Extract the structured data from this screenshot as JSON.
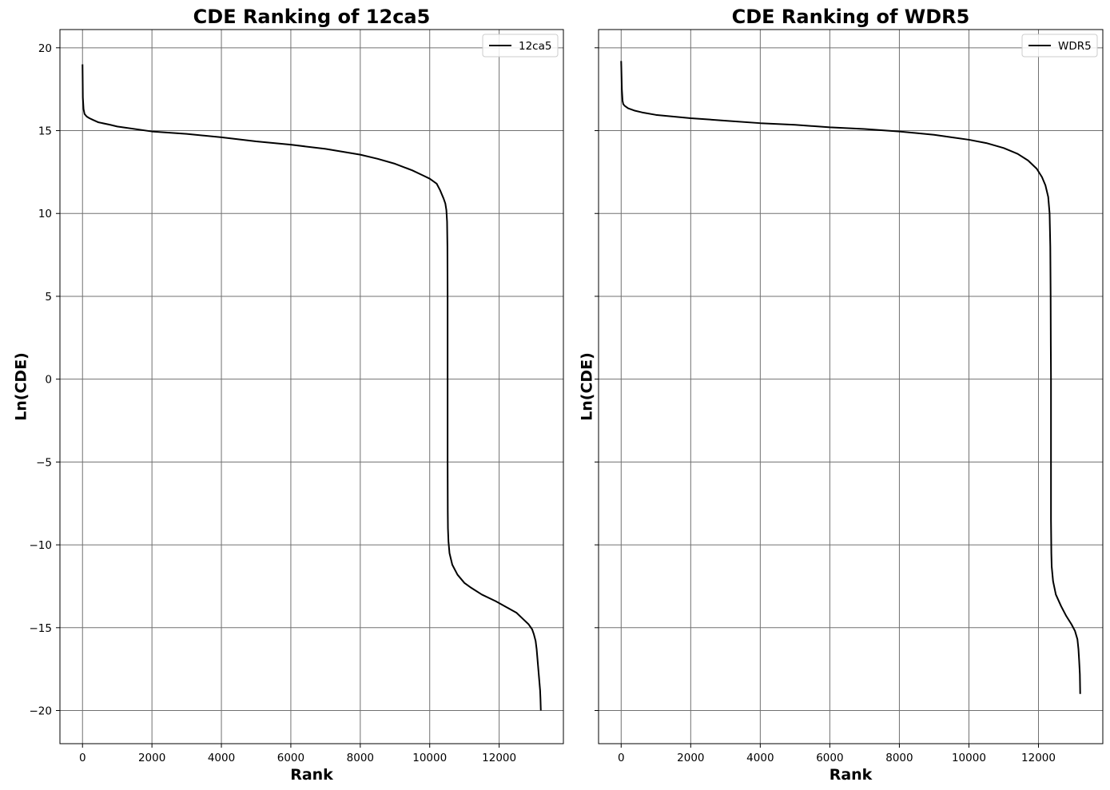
{
  "chart_data": [
    {
      "type": "line",
      "title": "CDE Ranking of 12ca5",
      "xlabel": "Rank",
      "ylabel": "Ln(CDE)",
      "xlim": [
        -650,
        13850
      ],
      "ylim": [
        -22,
        21.1
      ],
      "xticks": [
        0,
        2000,
        4000,
        6000,
        8000,
        10000,
        12000
      ],
      "yticks": [
        20,
        15,
        10,
        5,
        0,
        -5,
        -10,
        -15,
        -20
      ],
      "ytick_labels": [
        "20",
        "15",
        "10",
        "5",
        "0",
        "−5",
        "−10",
        "−15",
        "−20"
      ],
      "show_ytick_labels": true,
      "grid": true,
      "legend": "top-right",
      "series": [
        {
          "name": "12ca5",
          "color": "#000000",
          "x": [
            0,
            10,
            30,
            60,
            120,
            200,
            300,
            460,
            800,
            1000,
            2000,
            3000,
            4000,
            5000,
            6000,
            7000,
            8000,
            8500,
            9000,
            9500,
            9800,
            10000,
            10200,
            10300,
            10400,
            10450,
            10480,
            10500,
            10510,
            10515,
            10515,
            10515,
            10520,
            10525,
            10540,
            10570,
            10650,
            10800,
            11000,
            11200,
            11500,
            11900,
            12200,
            12500,
            12700,
            12850,
            12950,
            13000,
            13050,
            13080,
            13100,
            13120,
            13140,
            13160,
            13180,
            13190,
            13200
          ],
          "y": [
            19,
            17,
            16.3,
            16.0,
            15.85,
            15.75,
            15.65,
            15.5,
            15.35,
            15.25,
            14.95,
            14.8,
            14.6,
            14.35,
            14.15,
            13.9,
            13.55,
            13.3,
            13.0,
            12.6,
            12.3,
            12.1,
            11.8,
            11.4,
            10.9,
            10.6,
            10.2,
            9.5,
            8.0,
            5.0,
            0,
            -5,
            -8.0,
            -9.0,
            -9.8,
            -10.5,
            -11.2,
            -11.8,
            -12.3,
            -12.6,
            -13.0,
            -13.4,
            -13.75,
            -14.1,
            -14.5,
            -14.8,
            -15.1,
            -15.4,
            -15.8,
            -16.3,
            -16.8,
            -17.3,
            -17.8,
            -18.3,
            -18.8,
            -19.3,
            -20.0
          ]
        }
      ]
    },
    {
      "type": "line",
      "title": "CDE Ranking of WDR5",
      "xlabel": "Rank",
      "ylabel": "Ln(CDE)",
      "xlim": [
        -650,
        13850
      ],
      "ylim": [
        -22,
        21.1
      ],
      "xticks": [
        0,
        2000,
        4000,
        6000,
        8000,
        10000,
        12000
      ],
      "yticks": [
        20,
        15,
        10,
        5,
        0,
        -5,
        -10,
        -15,
        -20
      ],
      "show_ytick_labels": false,
      "grid": true,
      "legend": "top-right",
      "series": [
        {
          "name": "WDR5",
          "color": "#000000",
          "x": [
            0,
            20,
            40,
            60,
            100,
            200,
            400,
            600,
            1000,
            2000,
            3000,
            4000,
            5000,
            6000,
            7000,
            8000,
            9000,
            9500,
            10000,
            10500,
            11000,
            11400,
            11700,
            11950,
            12100,
            12200,
            12280,
            12320,
            12340,
            12350,
            12355,
            12360,
            12360,
            12360,
            12365,
            12370,
            12380,
            12420,
            12500,
            12650,
            12800,
            12950,
            13050,
            13120,
            13150,
            13170,
            13190,
            13200
          ],
          "y": [
            19.2,
            17.5,
            16.8,
            16.6,
            16.5,
            16.35,
            16.2,
            16.1,
            15.95,
            15.75,
            15.6,
            15.45,
            15.35,
            15.2,
            15.1,
            14.95,
            14.75,
            14.6,
            14.45,
            14.25,
            13.95,
            13.6,
            13.2,
            12.7,
            12.2,
            11.7,
            11.0,
            10.0,
            8.0,
            5.0,
            2.0,
            0,
            -5,
            -8.5,
            -9.5,
            -10.5,
            -11.3,
            -12.2,
            -13.0,
            -13.7,
            -14.3,
            -14.8,
            -15.2,
            -15.7,
            -16.3,
            -17.0,
            -17.8,
            -19.0
          ]
        }
      ]
    }
  ]
}
